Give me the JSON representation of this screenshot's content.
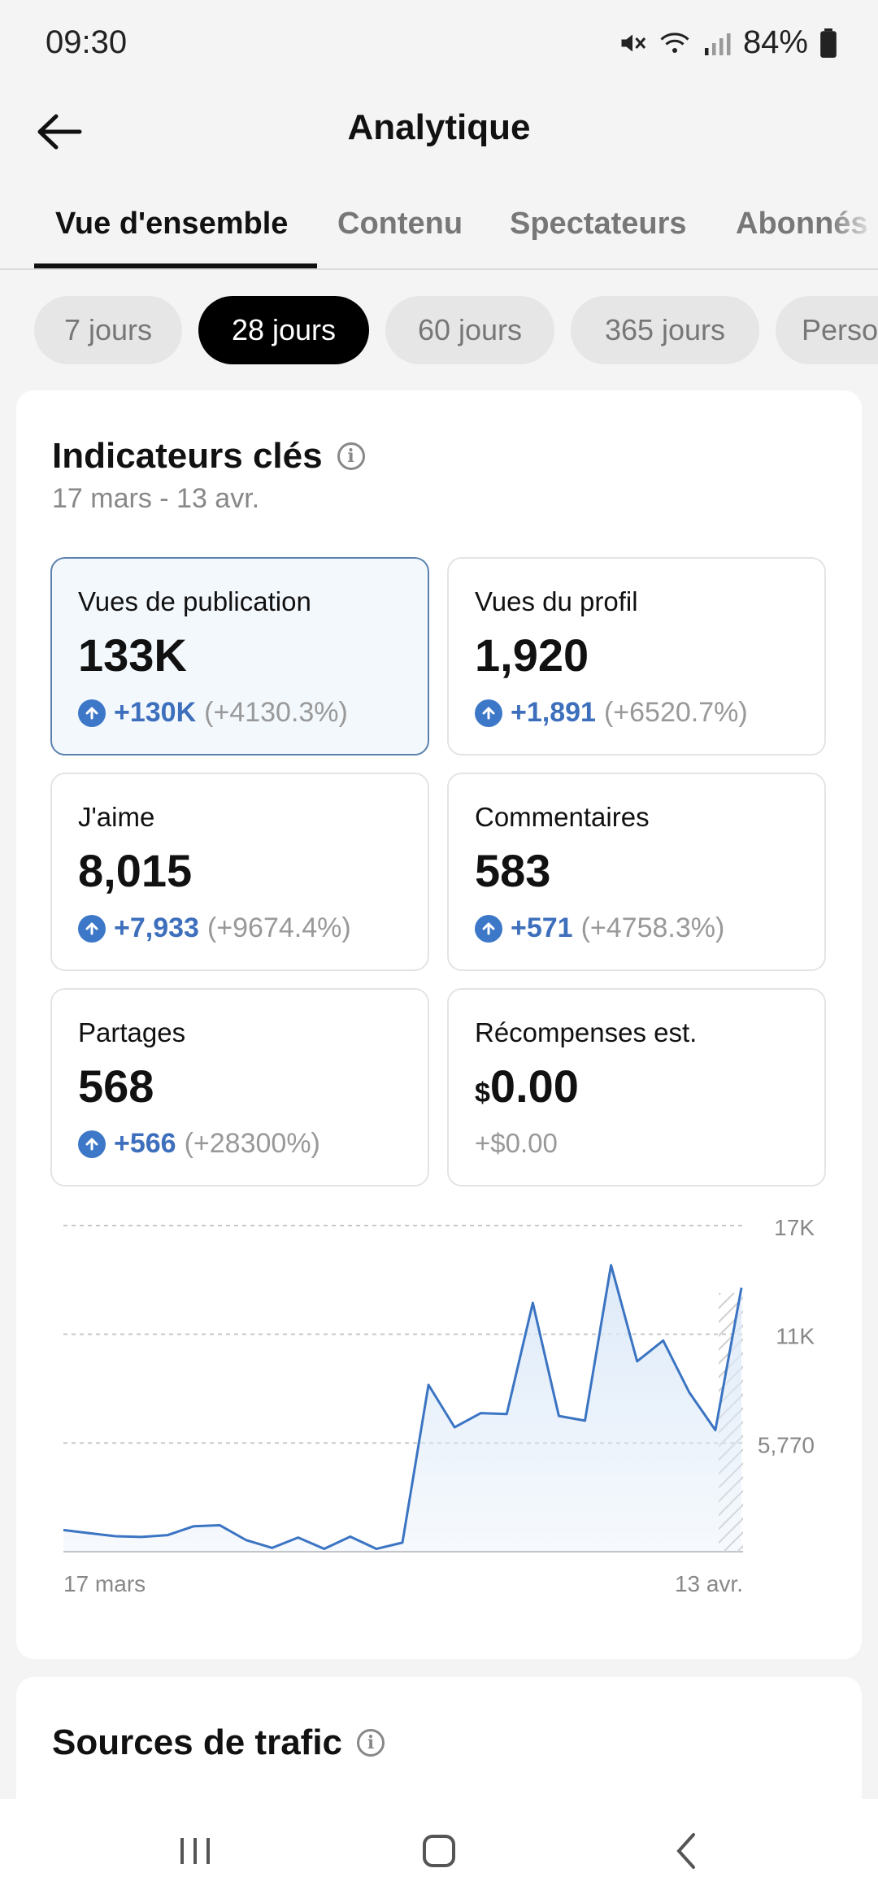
{
  "status_bar": {
    "time": "09:30",
    "battery": "84%"
  },
  "header": {
    "title": "Analytique",
    "back_icon": "arrow-left-icon"
  },
  "tabs": [
    {
      "label": "Vue d'ensemble",
      "active": true
    },
    {
      "label": "Contenu",
      "active": false
    },
    {
      "label": "Spectateurs",
      "active": false
    },
    {
      "label": "Abonnés",
      "active": false
    }
  ],
  "periods": [
    {
      "label": "7 jours",
      "active": false
    },
    {
      "label": "28 jours",
      "active": true
    },
    {
      "label": "60 jours",
      "active": false
    },
    {
      "label": "365 jours",
      "active": false
    },
    {
      "label": "Personnalisé",
      "active": false
    }
  ],
  "key_indicators": {
    "title": "Indicateurs clés",
    "date_range": "17 mars - 13 avr.",
    "metrics": [
      {
        "label": "Vues de publication",
        "value": "133K",
        "delta": "+130K",
        "pct": "(+4130.3%)",
        "selected": true
      },
      {
        "label": "Vues du profil",
        "value": "1,920",
        "delta": "+1,891",
        "pct": "(+6520.7%)"
      },
      {
        "label": "J'aime",
        "value": "8,015",
        "delta": "+7,933",
        "pct": "(+9674.4%)"
      },
      {
        "label": "Commentaires",
        "value": "583",
        "delta": "+571",
        "pct": "(+4758.3%)"
      },
      {
        "label": "Partages",
        "value": "568",
        "delta": "+566",
        "pct": "(+28300%)"
      },
      {
        "label": "Récompenses est.",
        "currency": "$",
        "value": "0.00",
        "change": "+$0.00"
      }
    ]
  },
  "chart_data": {
    "type": "area",
    "y_ticks": [
      "17K",
      "11K",
      "5,770"
    ],
    "x_labels": [
      "17 mars",
      "13 avr."
    ],
    "ylim": [
      0,
      17300
    ],
    "color": "#3b74c2",
    "fill_color": "#dce9f8",
    "values": [
      1150,
      980,
      820,
      780,
      880,
      1350,
      1400,
      620,
      200,
      750,
      150,
      800,
      150,
      480,
      8850,
      6600,
      7350,
      7300,
      13200,
      7200,
      6950,
      15200,
      10100,
      11200,
      8450,
      6450,
      14000
    ]
  },
  "traffic_sources": {
    "title": "Sources de trafic"
  },
  "nav_bar": {
    "recents_icon": "recents-icon",
    "home_icon": "home-icon",
    "back_icon": "back-chevron-icon"
  }
}
